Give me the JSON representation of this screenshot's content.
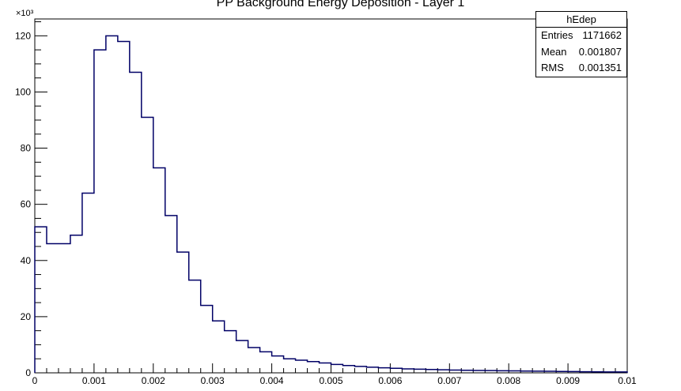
{
  "page": {
    "title": "PP Background Energy Deposition - Layer 1"
  },
  "stats": {
    "name": "hEdep",
    "entries_label": "Entries",
    "entries": "1171662",
    "mean_label": "Mean",
    "mean": "0.001807",
    "rms_label": "RMS",
    "rms": "0.001351"
  },
  "chart_data": {
    "type": "bar",
    "title": "PP Background Energy Deposition - Layer 1",
    "xlabel": "",
    "ylabel": "",
    "y_multiplier_label": "×10³",
    "xlim": [
      0,
      0.01
    ],
    "ylim": [
      0,
      126
    ],
    "bin_width": 0.0002,
    "x_ticks": [
      0,
      0.001,
      0.002,
      0.003,
      0.004,
      0.005,
      0.006,
      0.007,
      0.008,
      0.009,
      0.01
    ],
    "x_tick_labels": [
      "0",
      "0.001",
      "0.002",
      "0.003",
      "0.004",
      "0.005",
      "0.006",
      "0.007",
      "0.008",
      "0.009",
      "0.01"
    ],
    "y_ticks": [
      0,
      20,
      40,
      60,
      80,
      100,
      120
    ],
    "y_tick_labels": [
      "0",
      "20",
      "40",
      "60",
      "80",
      "100",
      "120"
    ],
    "grid": false,
    "legend": "none",
    "line_color": "#000066",
    "bin_edges_start": 0,
    "values": [
      52,
      46,
      46,
      49,
      64,
      115,
      120,
      118,
      107,
      91,
      73,
      56,
      43,
      33,
      24,
      18.5,
      15,
      11.5,
      9,
      7.5,
      6,
      5,
      4.5,
      4,
      3.5,
      3,
      2.6,
      2.3,
      2,
      1.8,
      1.6,
      1.4,
      1.3,
      1.2,
      1.1,
      1,
      0.9,
      0.85,
      0.8,
      0.75,
      0.7,
      0.65,
      0.6,
      0.55,
      0.5,
      0.45,
      0.4,
      0.35,
      0.3,
      0.3
    ]
  }
}
